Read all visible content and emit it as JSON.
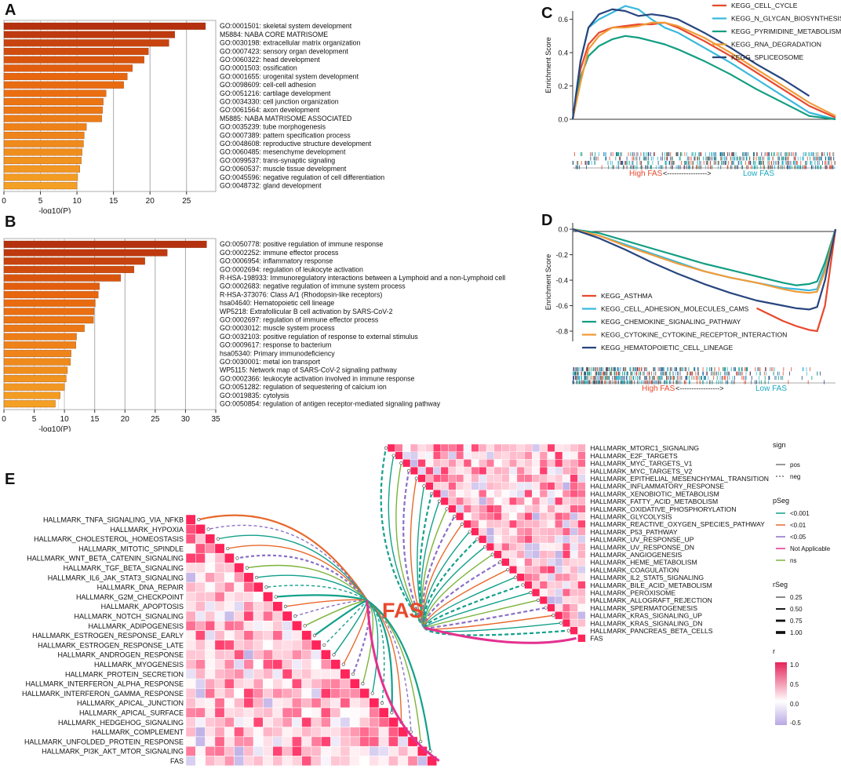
{
  "panel_labels": {
    "A": "A",
    "B": "B",
    "C": "C",
    "D": "D",
    "E": "E"
  },
  "fas_big_label": "FAS",
  "colors": {
    "bar_dark": "#b5300f",
    "bar_mid": "#e8650e",
    "bar_light": "#f4a024",
    "cycle": "#e8482c",
    "nglycan": "#39b9dc",
    "pyrimidine": "#139e82",
    "rnadeg": "#f19b38",
    "splice": "#27457e",
    "asthma": "#e8482c",
    "cam": "#39b9dc",
    "chemokine": "#139e82",
    "cytokine": "#f19b38",
    "hema": "#27457e",
    "high_fas": "#e8482c",
    "low_fas": "#1aa7c0",
    "p001": "#12a08a",
    "p01": "#e8692c",
    "p05": "#8a70c8",
    "na": "#e4318f",
    "ns": "#7cb33a",
    "heat_pos": "#e5245a",
    "heat_neg": "#b9a8e4"
  },
  "chart_data": [
    {
      "id": "A",
      "type": "bar",
      "orientation": "horizontal",
      "xlabel": "-log10(P)",
      "xlim": [
        0,
        29
      ],
      "xticks": [
        0,
        5,
        10,
        15,
        20,
        25
      ],
      "categories": [
        "GO:0001501: skeletal system development",
        "M5884: NABA CORE MATRISOME",
        "GO:0030198: extracellular matrix organization",
        "GO:0007423: sensory organ development",
        "GO:0060322: head development",
        "GO:0001503: ossification",
        "GO:0001655: urogenital system development",
        "GO:0098609: cell-cell adhesion",
        "GO:0051216: cartilage development",
        "GO:0034330: cell junction organization",
        "GO:0061564: axon development",
        "M5885: NABA MATRISOME ASSOCIATED",
        "GO:0035239: tube morphogenesis",
        "GO:0007389: pattern specification process",
        "GO:0048608: reproductive structure development",
        "GO:0060485: mesenchyme development",
        "GO:0099537: trans-synaptic signaling",
        "GO:0060537: muscle tissue development",
        "GO:0045596: negative regulation of cell differentiation",
        "GO:0048732: gland development"
      ],
      "values": [
        27.6,
        23.4,
        22.6,
        19.8,
        19.2,
        17.6,
        16.9,
        16.4,
        14,
        13.6,
        13.5,
        13.4,
        11.3,
        11,
        10.9,
        10.7,
        10.6,
        10.4,
        10.1,
        10
      ]
    },
    {
      "id": "B",
      "type": "bar",
      "orientation": "horizontal",
      "xlabel": "-log10(P)",
      "xlim": [
        0,
        35
      ],
      "xticks": [
        0,
        5,
        10,
        15,
        20,
        25,
        30,
        35
      ],
      "categories": [
        "GO:0050778: positive regulation of immune response",
        "GO:0002252: immune effector process",
        "GO:0006954: inflammatory response",
        "GO:0002694: regulation of leukocyte activation",
        "R-HSA-198933: Immunoregulatory interactions between a Lymphoid and a non-Lymphoid cell",
        "GO:0002683: negative regulation of immune system process",
        "R-HSA-373076: Class A/1 (Rhodopsin-like receptors)",
        "hsa04640: Hematopoietic cell lineage",
        "WP5218: Extrafollicular B cell activation by SARS-CoV-2",
        "GO:0002697: regulation of immune effector process",
        "GO:0003012: muscle system process",
        "GO:0032103: positive regulation of response to external stimulus",
        "GO:0009617: response to bacterium",
        "hsa05340: Primary immunodeficiency",
        "GO:0030001: metal ion transport",
        "WP5115: Network map of SARS-CoV-2 signaling pathway",
        "GO:0002366: leukocyte activation involved in immune response",
        "GO:0051282: regulation of sequestering of calcium ion",
        "GO:0019835: cytolysis",
        "GO:0050854: regulation of antigen receptor-mediated signaling pathway"
      ],
      "values": [
        33.5,
        27,
        23.3,
        21.5,
        19.3,
        15.8,
        15.6,
        15.1,
        14.9,
        14.8,
        13.3,
        12,
        11.9,
        11.1,
        11,
        10.5,
        10.3,
        10,
        9.3,
        8.5
      ]
    },
    {
      "id": "C",
      "type": "line",
      "title": "",
      "ylabel": "Enrichment Score",
      "ylim": [
        0,
        0.65
      ],
      "yticks": [
        0.0,
        0.2,
        0.4,
        0.6
      ],
      "x": [
        0,
        3,
        6,
        10,
        15,
        20,
        25,
        30,
        35,
        40,
        50,
        60,
        70,
        80,
        90,
        100
      ],
      "series": [
        {
          "name": "KEGG_CELL_CYCLE",
          "color_key": "cycle",
          "values": [
            0,
            0.3,
            0.45,
            0.52,
            0.55,
            0.56,
            0.57,
            0.57,
            0.58,
            0.55,
            0.47,
            0.38,
            0.28,
            0.18,
            0.08,
            0.01
          ]
        },
        {
          "name": "KEGG_N_GLYCAN_BIOSYNTHESIS",
          "color_key": "nglycan",
          "values": [
            0,
            0.35,
            0.55,
            0.6,
            0.64,
            0.68,
            0.66,
            0.6,
            0.55,
            0.52,
            0.43,
            0.34,
            0.24,
            0.14,
            0.04,
            0.0
          ]
        },
        {
          "name": "KEGG_PYRIMIDINE_METABOLISM",
          "color_key": "pyrimidine",
          "values": [
            0,
            0.25,
            0.38,
            0.44,
            0.48,
            0.5,
            0.49,
            0.47,
            0.45,
            0.42,
            0.35,
            0.27,
            0.18,
            0.1,
            0.02,
            0.0
          ]
        },
        {
          "name": "KEGG_RNA_DEGRADATION",
          "color_key": "rnadeg",
          "values": [
            0,
            0.22,
            0.42,
            0.5,
            0.55,
            0.55,
            0.56,
            0.58,
            0.58,
            0.56,
            0.49,
            0.4,
            0.3,
            0.2,
            0.1,
            0.02
          ]
        },
        {
          "name": "KEGG_SPLICEOSOME",
          "color_key": "splice",
          "values": [
            0,
            0.35,
            0.55,
            0.63,
            0.66,
            0.65,
            0.62,
            0.63,
            0.62,
            0.6,
            0.52,
            0.43,
            0.33,
            0.24,
            0.14,
            null
          ]
        }
      ],
      "bottom_left": "High FAS",
      "bottom_mid": "<----------------->",
      "bottom_right": "Low FAS"
    },
    {
      "id": "D",
      "type": "line",
      "ylabel": "Enrichment Score",
      "ylim": [
        -0.88,
        0.05
      ],
      "yticks": [
        0.0,
        -0.2,
        -0.4,
        -0.6,
        -0.8
      ],
      "x": [
        0,
        10,
        20,
        30,
        40,
        50,
        60,
        70,
        80,
        85,
        90,
        93,
        96,
        100
      ],
      "series": [
        {
          "name": "KEGG_ASTHMA",
          "color_key": "asthma",
          "values": [
            null,
            null,
            null,
            null,
            null,
            null,
            null,
            -0.62,
            -0.72,
            -0.76,
            -0.79,
            -0.8,
            -0.6,
            0
          ]
        },
        {
          "name": "KEGG_CELL_ADHESION_MOLECULES_CAMS",
          "color_key": "cam",
          "values": [
            0,
            -0.05,
            -0.12,
            -0.19,
            -0.26,
            -0.33,
            -0.38,
            -0.42,
            -0.46,
            -0.47,
            -0.48,
            -0.47,
            -0.3,
            0
          ]
        },
        {
          "name": "KEGG_CHEMOKINE_SIGNALING_PATHWAY",
          "color_key": "chemokine",
          "values": [
            0,
            -0.03,
            -0.09,
            -0.15,
            -0.21,
            -0.27,
            -0.32,
            -0.37,
            -0.42,
            -0.44,
            -0.43,
            -0.41,
            -0.26,
            0
          ]
        },
        {
          "name": "KEGG_CYTOKINE_CYTOKINE_RECEPTOR_INTERACTION",
          "color_key": "cytokine",
          "values": [
            0,
            -0.05,
            -0.13,
            -0.2,
            -0.27,
            -0.33,
            -0.38,
            -0.42,
            -0.47,
            -0.49,
            -0.5,
            -0.49,
            -0.33,
            0
          ]
        },
        {
          "name": "KEGG_HEMATOPOIETIC_CELL_LINEAGE",
          "color_key": "hema",
          "values": [
            0,
            -0.07,
            -0.16,
            -0.26,
            -0.35,
            -0.43,
            -0.5,
            -0.56,
            -0.6,
            -0.62,
            -0.63,
            -0.61,
            -0.4,
            0
          ]
        }
      ],
      "bottom_left": "High FAS",
      "bottom_mid": "<----------------->",
      "bottom_right": "Low FAS"
    },
    {
      "id": "E",
      "type": "heatmap",
      "left_rows": [
        "HALLMARK_TNFA_SIGNALING_VIA_NFKB",
        "HALLMARK_HYPOXIA",
        "HALLMARK_CHOLESTEROL_HOMEOSTASIS",
        "HALLMARK_MITOTIC_SPINDLE",
        "HALLMARK_WNT_BETA_CATENIN_SIGNALING",
        "HALLMARK_TGF_BETA_SIGNALING",
        "HALLMARK_IL6_JAK_STAT3_SIGNALING",
        "HALLMARK_DNA_REPAIR",
        "HALLMARK_G2M_CHECKPOINT",
        "HALLMARK_APOPTOSIS",
        "HALLMARK_NOTCH_SIGNALING",
        "HALLMARK_ADIPOGENESIS",
        "HALLMARK_ESTROGEN_RESPONSE_EARLY",
        "HALLMARK_ESTROGEN_RESPONSE_LATE",
        "HALLMARK_ANDROGEN_RESPONSE",
        "HALLMARK_MYOGENESIS",
        "HALLMARK_PROTEIN_SECRETION",
        "HALLMARK_INTERFERON_ALPHA_RESPONSE",
        "HALLMARK_INTERFERON_GAMMA_RESPONSE",
        "HALLMARK_APICAL_JUNCTION",
        "HALLMARK_APICAL_SURFACE",
        "HALLMARK_HEDGEHOG_SIGNALING",
        "HALLMARK_COMPLEMENT",
        "HALLMARK_UNFOLDED_PROTEIN_RESPONSE",
        "HALLMARK_PI3K_AKT_MTOR_SIGNALING",
        "FAS"
      ],
      "right_rows": [
        "HALLMARK_MTORC1_SIGNALING",
        "HALLMARK_E2F_TARGETS",
        "HALLMARK_MYC_TARGETS_V1",
        "HALLMARK_MYC_TARGETS_V2",
        "HALLMARK_EPITHELIAL_MESENCHYMAL_TRANSITION",
        "HALLMARK_INFLAMMATORY_RESPONSE",
        "HALLMARK_XENOBIOTIC_METABOLISM",
        "HALLMARK_FATTY_ACID_METABOLISM",
        "HALLMARK_OXIDATIVE_PHOSPHORYLATION",
        "HALLMARK_GLYCOLYSIS",
        "HALLMARK_REACTIVE_OXYGEN_SPECIES_PATHWAY",
        "HALLMARK_P53_PATHWAY",
        "HALLMARK_UV_RESPONSE_UP",
        "HALLMARK_UV_RESPONSE_DN",
        "HALLMARK_ANGIOGENESIS",
        "HALLMARK_HEME_METABOLISM",
        "HALLMARK_COAGULATION",
        "HALLMARK_IL2_STAT5_SIGNALING",
        "HALLMARK_BILE_ACID_METABOLISM",
        "HALLMARK_PEROXISOME",
        "HALLMARK_ALLOGRAFT_REJECTION",
        "HALLMARK_SPERMATOGENESIS",
        "HALLMARK_KRAS_SIGNALING_UP",
        "HALLMARK_KRAS_SIGNALING_DN",
        "HALLMARK_PANCREAS_BETA_CELLS",
        "FAS"
      ],
      "legend": {
        "sign_title": "sign",
        "sign_items": [
          "pos",
          "neg"
        ],
        "pseg_title": "pSeg",
        "pseg_items": [
          "<0.001",
          "<0.01",
          "<0.05",
          "Not Applicable",
          "ns"
        ],
        "rseg_title": "rSeg",
        "rseg_items": [
          "0.25",
          "0.50",
          "0.75",
          "1.00"
        ],
        "r_title": "r",
        "r_ticks": [
          "1.0",
          "0.5",
          "0.0",
          "-0.5"
        ]
      }
    }
  ]
}
